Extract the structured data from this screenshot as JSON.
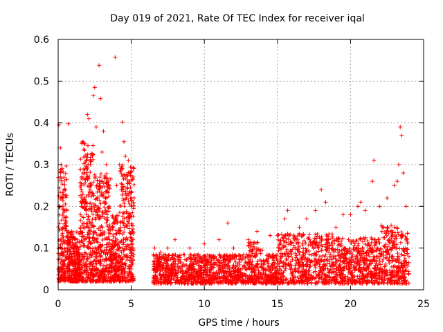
{
  "chart_data": {
    "type": "scatter",
    "title": "Day 019 of 2021, Rate Of TEC Index for receiver iqal",
    "xlabel": "GPS time / hours",
    "ylabel": "ROTI / TECUs",
    "xlim": [
      0,
      25
    ],
    "ylim": [
      0,
      0.6
    ],
    "xticks": [
      0,
      5,
      10,
      15,
      20,
      25
    ],
    "yticks": [
      0,
      0.1,
      0.2,
      0.3,
      0.4,
      0.5,
      0.6
    ],
    "xtick_labels": [
      "0",
      "5",
      "10",
      "15",
      "20",
      "25"
    ],
    "ytick_labels": [
      "0",
      "0.1",
      "0.2",
      "0.3",
      "0.4",
      "0.5",
      "0.6"
    ],
    "grid": true,
    "marker": "+",
    "color": "#ff0000",
    "series": [
      {
        "name": "ROTI",
        "points": [
          [
            0.05,
            0.395
          ],
          [
            0.15,
            0.34
          ],
          [
            0.2,
            0.3
          ],
          [
            0.3,
            0.22
          ],
          [
            0.4,
            0.27
          ],
          [
            0.5,
            0.16
          ],
          [
            0.6,
            0.19
          ],
          [
            0.7,
            0.398
          ],
          [
            0.8,
            0.12
          ],
          [
            0.9,
            0.08
          ],
          [
            1.0,
            0.1
          ],
          [
            1.2,
            0.06
          ],
          [
            1.4,
            0.09
          ],
          [
            1.6,
            0.2
          ],
          [
            1.7,
            0.28
          ],
          [
            1.8,
            0.35
          ],
          [
            1.9,
            0.32
          ],
          [
            2.0,
            0.42
          ],
          [
            2.1,
            0.41
          ],
          [
            2.2,
            0.3
          ],
          [
            2.3,
            0.2
          ],
          [
            2.4,
            0.465
          ],
          [
            2.5,
            0.485
          ],
          [
            2.6,
            0.39
          ],
          [
            2.7,
            0.25
          ],
          [
            2.8,
            0.538
          ],
          [
            2.9,
            0.458
          ],
          [
            3.0,
            0.33
          ],
          [
            3.1,
            0.38
          ],
          [
            3.3,
            0.3
          ],
          [
            3.5,
            0.2
          ],
          [
            3.7,
            0.15
          ],
          [
            3.9,
            0.557
          ],
          [
            4.0,
            0.25
          ],
          [
            4.2,
            0.3
          ],
          [
            4.4,
            0.402
          ],
          [
            4.5,
            0.355
          ],
          [
            4.6,
            0.32
          ],
          [
            4.8,
            0.31
          ],
          [
            5.0,
            0.2
          ],
          [
            5.1,
            0.1
          ],
          [
            6.6,
            0.1
          ],
          [
            7.0,
            0.09
          ],
          [
            7.5,
            0.1
          ],
          [
            8.0,
            0.12
          ],
          [
            9.0,
            0.1
          ],
          [
            10.0,
            0.11
          ],
          [
            11.0,
            0.12
          ],
          [
            11.6,
            0.16
          ],
          [
            12.0,
            0.1
          ],
          [
            13.0,
            0.12
          ],
          [
            13.6,
            0.14
          ],
          [
            14.5,
            0.13
          ],
          [
            15.5,
            0.17
          ],
          [
            15.7,
            0.19
          ],
          [
            16.5,
            0.15
          ],
          [
            17.0,
            0.17
          ],
          [
            17.6,
            0.19
          ],
          [
            18.0,
            0.24
          ],
          [
            18.3,
            0.21
          ],
          [
            19.0,
            0.15
          ],
          [
            19.5,
            0.18
          ],
          [
            20.0,
            0.18
          ],
          [
            20.5,
            0.2
          ],
          [
            20.7,
            0.21
          ],
          [
            21.0,
            0.19
          ],
          [
            21.5,
            0.26
          ],
          [
            21.6,
            0.31
          ],
          [
            22.0,
            0.2
          ],
          [
            22.5,
            0.22
          ],
          [
            23.0,
            0.25
          ],
          [
            23.2,
            0.26
          ],
          [
            23.3,
            0.3
          ],
          [
            23.4,
            0.39
          ],
          [
            23.5,
            0.37
          ],
          [
            23.6,
            0.28
          ],
          [
            23.8,
            0.2
          ],
          [
            24.0,
            0.08
          ]
        ],
        "note": "Dense clusters: 0-5.2 h values mostly 0.02-0.35; gap ~5.2-6.5 h; 6.5-24 h values mostly 0.02-0.12 with scattered peaks"
      }
    ]
  }
}
